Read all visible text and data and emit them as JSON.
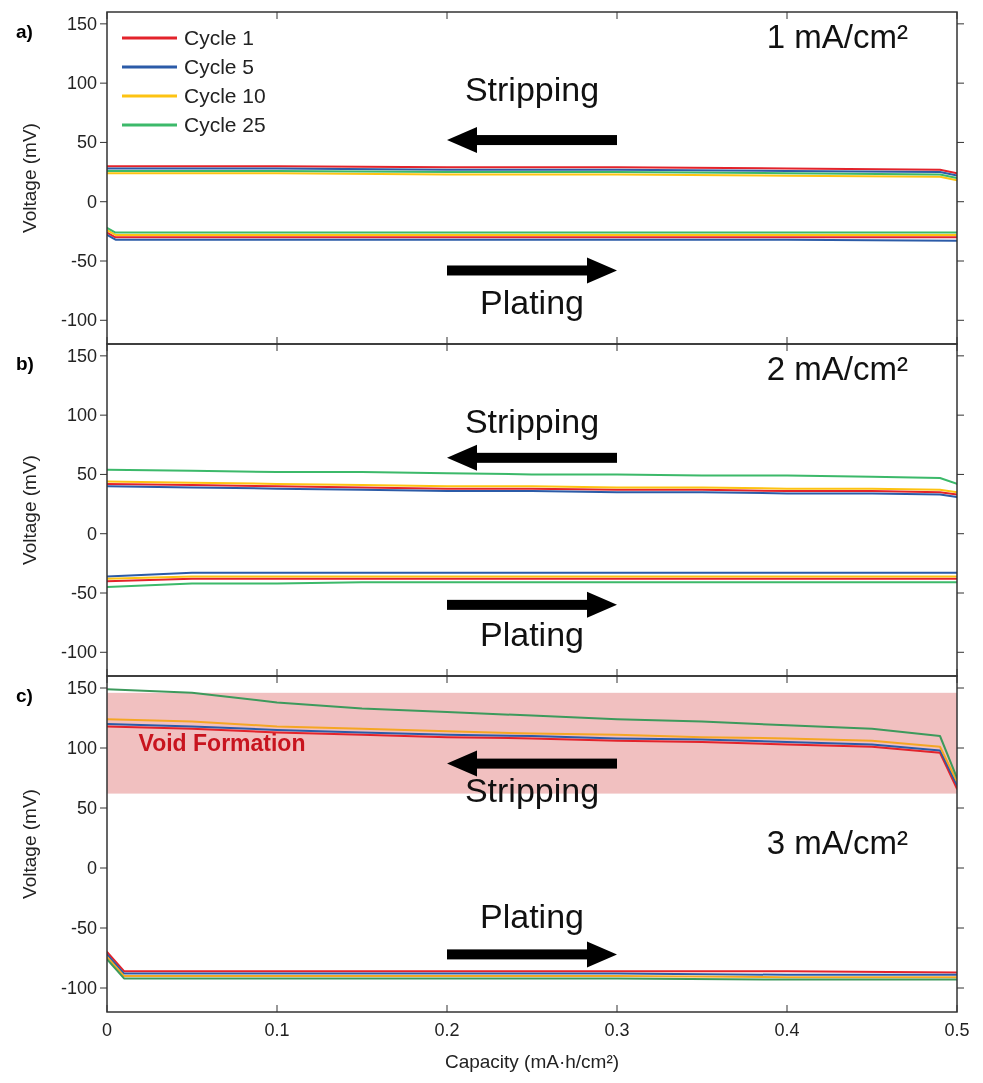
{
  "chart_data": [
    {
      "type": "line",
      "title": "a)",
      "ylabel": "Voltage (mV)",
      "xlim": [
        0,
        0.5
      ],
      "xticks": [
        0,
        0.1,
        0.2,
        0.3,
        0.4,
        0.5
      ],
      "ylim": [
        -120,
        160
      ],
      "yticks": [
        -100,
        -50,
        0,
        50,
        100,
        150
      ],
      "tick_labels": "y",
      "legend": "top left",
      "annotations": [
        "1 mA/cm²",
        "Stripping",
        "Plating"
      ],
      "series": [
        {
          "name": "Cycle 1",
          "color": "#e3232b",
          "x": [
            0,
            0.1,
            0.2,
            0.3,
            0.4,
            0.49,
            0.5
          ],
          "values": [
            30,
            30,
            29,
            29,
            28,
            27,
            24
          ]
        },
        {
          "name": "Cycle 5",
          "color": "#2b5ba8",
          "x": [
            0,
            0.1,
            0.2,
            0.3,
            0.4,
            0.49,
            0.5
          ],
          "values": [
            28,
            28,
            27,
            27,
            26,
            25,
            22
          ]
        },
        {
          "name": "Cycle 10",
          "color": "#fdc312",
          "x": [
            0,
            0.1,
            0.2,
            0.3,
            0.4,
            0.49,
            0.5
          ],
          "values": [
            24,
            24,
            23,
            23,
            22,
            21,
            18
          ]
        },
        {
          "name": "Cycle 25",
          "color": "#3cb96a",
          "x": [
            0,
            0.1,
            0.2,
            0.3,
            0.4,
            0.49,
            0.5
          ],
          "values": [
            26,
            26,
            25,
            25,
            24,
            23,
            20
          ]
        },
        {
          "color": "#e3232b",
          "x": [
            0,
            0.005,
            0.1,
            0.2,
            0.3,
            0.4,
            0.5
          ],
          "values": [
            -26,
            -30,
            -30,
            -30,
            -30,
            -30,
            -30
          ]
        },
        {
          "color": "#2b5ba8",
          "x": [
            0,
            0.005,
            0.1,
            0.2,
            0.3,
            0.4,
            0.5
          ],
          "values": [
            -28,
            -32,
            -32,
            -32,
            -32,
            -32,
            -33
          ]
        },
        {
          "color": "#fdc312",
          "x": [
            0,
            0.005,
            0.1,
            0.2,
            0.3,
            0.4,
            0.5
          ],
          "values": [
            -24,
            -28,
            -28,
            -28,
            -28,
            -28,
            -28
          ]
        },
        {
          "color": "#3cb96a",
          "x": [
            0,
            0.005,
            0.1,
            0.2,
            0.3,
            0.4,
            0.5
          ],
          "values": [
            -22,
            -26,
            -26,
            -26,
            -26,
            -26,
            -26
          ]
        }
      ]
    },
    {
      "type": "line",
      "title": "b)",
      "ylabel": "Voltage (mV)",
      "xlim": [
        0,
        0.5
      ],
      "xticks": [
        0,
        0.1,
        0.2,
        0.3,
        0.4,
        0.5
      ],
      "ylim": [
        -120,
        160
      ],
      "yticks": [
        -100,
        -50,
        0,
        50,
        100,
        150
      ],
      "tick_labels": "y",
      "annotations": [
        "2 mA/cm²",
        "Stripping",
        "Plating"
      ],
      "series": [
        {
          "color": "#e3232b",
          "x": [
            0,
            0.05,
            0.1,
            0.15,
            0.2,
            0.25,
            0.3,
            0.35,
            0.4,
            0.45,
            0.49,
            0.5
          ],
          "values": [
            42,
            41,
            40,
            39,
            38,
            38,
            37,
            37,
            36,
            36,
            35,
            33
          ]
        },
        {
          "color": "#2b5ba8",
          "x": [
            0,
            0.05,
            0.1,
            0.15,
            0.2,
            0.25,
            0.3,
            0.35,
            0.4,
            0.45,
            0.49,
            0.5
          ],
          "values": [
            40,
            39,
            38,
            37,
            36,
            36,
            35,
            35,
            34,
            34,
            33,
            31
          ]
        },
        {
          "color": "#fdc312",
          "x": [
            0,
            0.05,
            0.1,
            0.15,
            0.2,
            0.25,
            0.3,
            0.35,
            0.4,
            0.45,
            0.49,
            0.5
          ],
          "values": [
            44,
            43,
            42,
            41,
            40,
            40,
            39,
            39,
            38,
            38,
            37,
            35
          ]
        },
        {
          "color": "#3cb96a",
          "x": [
            0,
            0.05,
            0.1,
            0.15,
            0.2,
            0.25,
            0.3,
            0.35,
            0.4,
            0.45,
            0.49,
            0.5
          ],
          "values": [
            54,
            53,
            52,
            52,
            51,
            50,
            50,
            49,
            49,
            48,
            47,
            42
          ]
        },
        {
          "color": "#e3232b",
          "x": [
            0,
            0.05,
            0.1,
            0.15,
            0.2,
            0.25,
            0.3,
            0.35,
            0.4,
            0.45,
            0.5
          ],
          "values": [
            -40,
            -38,
            -38,
            -38,
            -38,
            -38,
            -38,
            -38,
            -38,
            -38,
            -38
          ]
        },
        {
          "color": "#2b5ba8",
          "x": [
            0,
            0.05,
            0.1,
            0.15,
            0.2,
            0.25,
            0.3,
            0.35,
            0.4,
            0.45,
            0.5
          ],
          "values": [
            -36,
            -33,
            -33,
            -33,
            -33,
            -33,
            -33,
            -33,
            -33,
            -33,
            -33
          ]
        },
        {
          "color": "#fdc312",
          "x": [
            0,
            0.05,
            0.1,
            0.15,
            0.2,
            0.25,
            0.3,
            0.35,
            0.4,
            0.45,
            0.5
          ],
          "values": [
            -38,
            -36,
            -36,
            -36,
            -36,
            -36,
            -36,
            -36,
            -36,
            -36,
            -36
          ]
        },
        {
          "color": "#3cb96a",
          "x": [
            0,
            0.05,
            0.1,
            0.15,
            0.2,
            0.25,
            0.3,
            0.35,
            0.4,
            0.45,
            0.5
          ],
          "values": [
            -45,
            -42,
            -42,
            -41,
            -41,
            -41,
            -41,
            -41,
            -41,
            -41,
            -41
          ]
        }
      ]
    },
    {
      "type": "line",
      "title": "c)",
      "xlabel": "Capacity (mA·h/cm²)",
      "ylabel": "Voltage (mV)",
      "xlim": [
        0,
        0.5
      ],
      "xticks": [
        0,
        0.1,
        0.2,
        0.3,
        0.4,
        0.5
      ],
      "ylim": [
        -120,
        160
      ],
      "yticks": [
        -100,
        -50,
        0,
        50,
        100,
        150
      ],
      "annotations": [
        "3 mA/cm²",
        "Stripping",
        "Plating"
      ],
      "bands": [
        {
          "axis": "y",
          "from": 62,
          "to": 146,
          "label": "Void Formation",
          "color": "#f1c0c0"
        }
      ],
      "series": [
        {
          "color": "#e3232b",
          "x": [
            0,
            0.05,
            0.1,
            0.15,
            0.2,
            0.25,
            0.3,
            0.35,
            0.4,
            0.45,
            0.49,
            0.5
          ],
          "values": [
            118,
            116,
            113,
            111,
            109,
            108,
            106,
            105,
            103,
            101,
            96,
            66
          ]
        },
        {
          "color": "#2b5ba8",
          "x": [
            0,
            0.05,
            0.1,
            0.15,
            0.2,
            0.25,
            0.3,
            0.35,
            0.4,
            0.45,
            0.49,
            0.5
          ],
          "values": [
            120,
            118,
            115,
            113,
            111,
            110,
            108,
            107,
            105,
            103,
            98,
            69
          ]
        },
        {
          "color": "#f5a623",
          "x": [
            0,
            0.05,
            0.1,
            0.15,
            0.2,
            0.25,
            0.3,
            0.35,
            0.4,
            0.45,
            0.49,
            0.5
          ],
          "values": [
            124,
            122,
            118,
            116,
            114,
            112,
            111,
            109,
            108,
            106,
            101,
            72
          ]
        },
        {
          "color": "#3d9a5c",
          "x": [
            0,
            0.05,
            0.1,
            0.15,
            0.2,
            0.25,
            0.3,
            0.35,
            0.4,
            0.45,
            0.49,
            0.5
          ],
          "values": [
            149,
            146,
            138,
            133,
            130,
            127,
            124,
            122,
            119,
            116,
            110,
            75
          ]
        },
        {
          "color": "#e3232b",
          "x": [
            0,
            0.01,
            0.1,
            0.2,
            0.3,
            0.4,
            0.5
          ],
          "values": [
            -70,
            -86,
            -86,
            -86,
            -86,
            -86,
            -87
          ]
        },
        {
          "color": "#2b5ba8",
          "x": [
            0,
            0.01,
            0.1,
            0.2,
            0.3,
            0.4,
            0.5
          ],
          "values": [
            -72,
            -88,
            -88,
            -88,
            -88,
            -89,
            -89
          ]
        },
        {
          "color": "#f5a623",
          "x": [
            0,
            0.01,
            0.1,
            0.2,
            0.3,
            0.4,
            0.5
          ],
          "values": [
            -74,
            -90,
            -90,
            -90,
            -90,
            -91,
            -91
          ]
        },
        {
          "color": "#3d9a5c",
          "x": [
            0,
            0.01,
            0.1,
            0.2,
            0.3,
            0.4,
            0.5
          ],
          "values": [
            -76,
            -92,
            -92,
            -92,
            -92,
            -93,
            -93
          ]
        }
      ]
    }
  ]
}
